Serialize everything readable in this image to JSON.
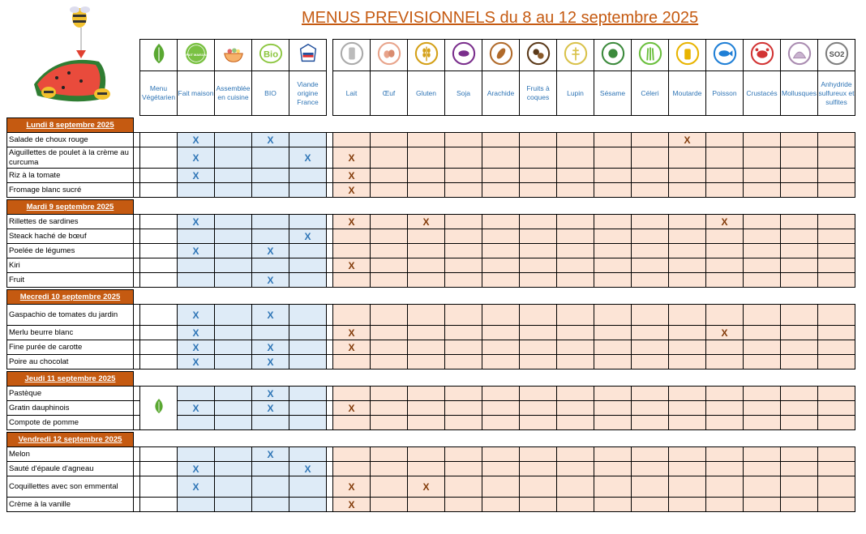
{
  "title": "MENUS PREVISIONNELS du 8 au 12 septembre 2025",
  "icon_texts": {
    "fait_maison": "FAIT MAISON",
    "bio": "Bio",
    "so2": "SO2"
  },
  "columns": [
    {
      "key": "veg",
      "label": "Menu Végétarien",
      "icon": "leaf-drop-icon",
      "group": "w"
    },
    {
      "key": "fait",
      "label": "Fait maison",
      "icon": "fait-maison-badge-icon",
      "group": "b"
    },
    {
      "key": "assemb",
      "label": "Assemblée en cuisine",
      "icon": "salad-bowl-icon",
      "group": "b"
    },
    {
      "key": "bio",
      "label": "BIO",
      "icon": "bio-logo-icon",
      "group": "b"
    },
    {
      "key": "viande",
      "label": "Viande origine France",
      "icon": "viande-france-logo-icon",
      "group": "b"
    },
    {
      "key": "lait",
      "label": "Lait",
      "icon": "milk-bottle-icon",
      "group": "o"
    },
    {
      "key": "oeuf",
      "label": "Œuf",
      "icon": "eggs-icon",
      "group": "o"
    },
    {
      "key": "gluten",
      "label": "Gluten",
      "icon": "wheat-icon",
      "group": "o"
    },
    {
      "key": "soja",
      "label": "Soja",
      "icon": "soy-icon",
      "group": "o"
    },
    {
      "key": "arachide",
      "label": "Arachide",
      "icon": "peanut-icon",
      "group": "o"
    },
    {
      "key": "fruits",
      "label": "Fruits à coques",
      "icon": "nuts-icon",
      "group": "o"
    },
    {
      "key": "lupin",
      "label": "Lupin",
      "icon": "lupin-icon",
      "group": "o"
    },
    {
      "key": "sesame",
      "label": "Sésame",
      "icon": "sesame-icon",
      "group": "o"
    },
    {
      "key": "celeri",
      "label": "Céleri",
      "icon": "celery-icon",
      "group": "o"
    },
    {
      "key": "moutarde",
      "label": "Moutarde",
      "icon": "mustard-icon",
      "group": "o"
    },
    {
      "key": "poisson",
      "label": "Poisson",
      "icon": "fish-icon",
      "group": "o"
    },
    {
      "key": "crustaces",
      "label": "Crustacés",
      "icon": "crab-icon",
      "group": "o"
    },
    {
      "key": "mollusques",
      "label": "Mollusques",
      "icon": "shell-icon",
      "group": "o"
    },
    {
      "key": "so2",
      "label": "Anhydride sulfureux et sulfites",
      "icon": "so2-icon",
      "group": "o"
    }
  ],
  "days": [
    {
      "label": "Lundi 8 septembre 2025",
      "dishes": [
        {
          "name": "Salade de choux rouge",
          "marks": [
            "fait",
            "bio",
            "moutarde"
          ]
        },
        {
          "name": "Aiguillettes de poulet à la crème au curcuma",
          "marks": [
            "fait",
            "viande",
            "lait"
          ],
          "tall": true
        },
        {
          "name": "Riz à la tomate",
          "marks": [
            "fait",
            "lait"
          ]
        },
        {
          "name": "Fromage blanc sucré",
          "marks": [
            "lait"
          ]
        }
      ]
    },
    {
      "label": "Mardi 9 septembre 2025",
      "dishes": [
        {
          "name": "Rillettes de sardines",
          "marks": [
            "fait",
            "lait",
            "gluten",
            "poisson"
          ]
        },
        {
          "name": "Steack haché de bœuf",
          "marks": [
            "viande"
          ]
        },
        {
          "name": "Poelée de légumes",
          "marks": [
            "fait",
            "bio"
          ]
        },
        {
          "name": "Kiri",
          "marks": [
            "lait"
          ]
        },
        {
          "name": "Fruit",
          "marks": [
            "bio"
          ]
        }
      ]
    },
    {
      "label": "Mecredi 10 septembre 2025",
      "dishes": [
        {
          "name": "Gaspachio de tomates du jardin",
          "marks": [
            "fait",
            "bio"
          ],
          "tall": true
        },
        {
          "name": "Merlu beurre blanc",
          "marks": [
            "fait",
            "lait",
            "poisson"
          ]
        },
        {
          "name": "Fine purée de carotte",
          "marks": [
            "fait",
            "bio",
            "lait"
          ]
        },
        {
          "name": "Poire au chocolat",
          "marks": [
            "fait",
            "bio"
          ]
        }
      ]
    },
    {
      "label": "Jeudi 11 septembre 2025",
      "veg": true,
      "dishes": [
        {
          "name": "Pastèque",
          "marks": [
            "bio"
          ]
        },
        {
          "name": "Gratin dauphinois",
          "marks": [
            "fait",
            "bio",
            "lait"
          ]
        },
        {
          "name": "Compote de pomme",
          "marks": []
        }
      ]
    },
    {
      "label": "Vendredi 12 septembre 2025",
      "dishes": [
        {
          "name": "Melon",
          "marks": [
            "bio"
          ]
        },
        {
          "name": "Sauté d'épaule d'agneau",
          "marks": [
            "fait",
            "viande"
          ]
        },
        {
          "name": "Coquillettes avec son emmental",
          "marks": [
            "fait",
            "lait",
            "gluten"
          ],
          "tall": true
        },
        {
          "name": "Crème à la vanille",
          "marks": [
            "lait"
          ]
        }
      ]
    }
  ],
  "mark_symbol": "X",
  "colors": {
    "title": "#c55a11",
    "day_header": "#c55a11",
    "blue_zone": "#deebf7",
    "orange_zone": "#fce4d6",
    "blue_x": "#2e75b6",
    "orange_x": "#833c0b",
    "label_text": "#2e74b5"
  }
}
